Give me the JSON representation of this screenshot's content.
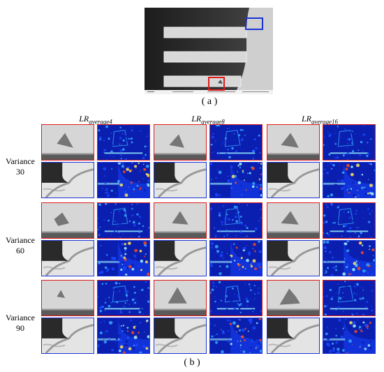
{
  "figure": {
    "caption_a": "( a )",
    "caption_b": "( b )",
    "column_headers": [
      {
        "base": "LR",
        "sub": "average4"
      },
      {
        "base": "LR",
        "sub": "average8"
      },
      {
        "base": "LR",
        "sub": "average16"
      }
    ],
    "rows": [
      {
        "line1": "Variance",
        "line2": "30"
      },
      {
        "line1": "Variance",
        "line2": "60"
      },
      {
        "line1": "Variance",
        "line2": "90"
      }
    ],
    "highlight_colors": {
      "red_region": "#e01a1a",
      "blue_region": "#1a33d6"
    },
    "heatmap_palette": [
      "#0a1fb0",
      "#1746ff",
      "#35a8ff",
      "#9ff7ff",
      "#ffe45a",
      "#ff4a1a"
    ]
  }
}
